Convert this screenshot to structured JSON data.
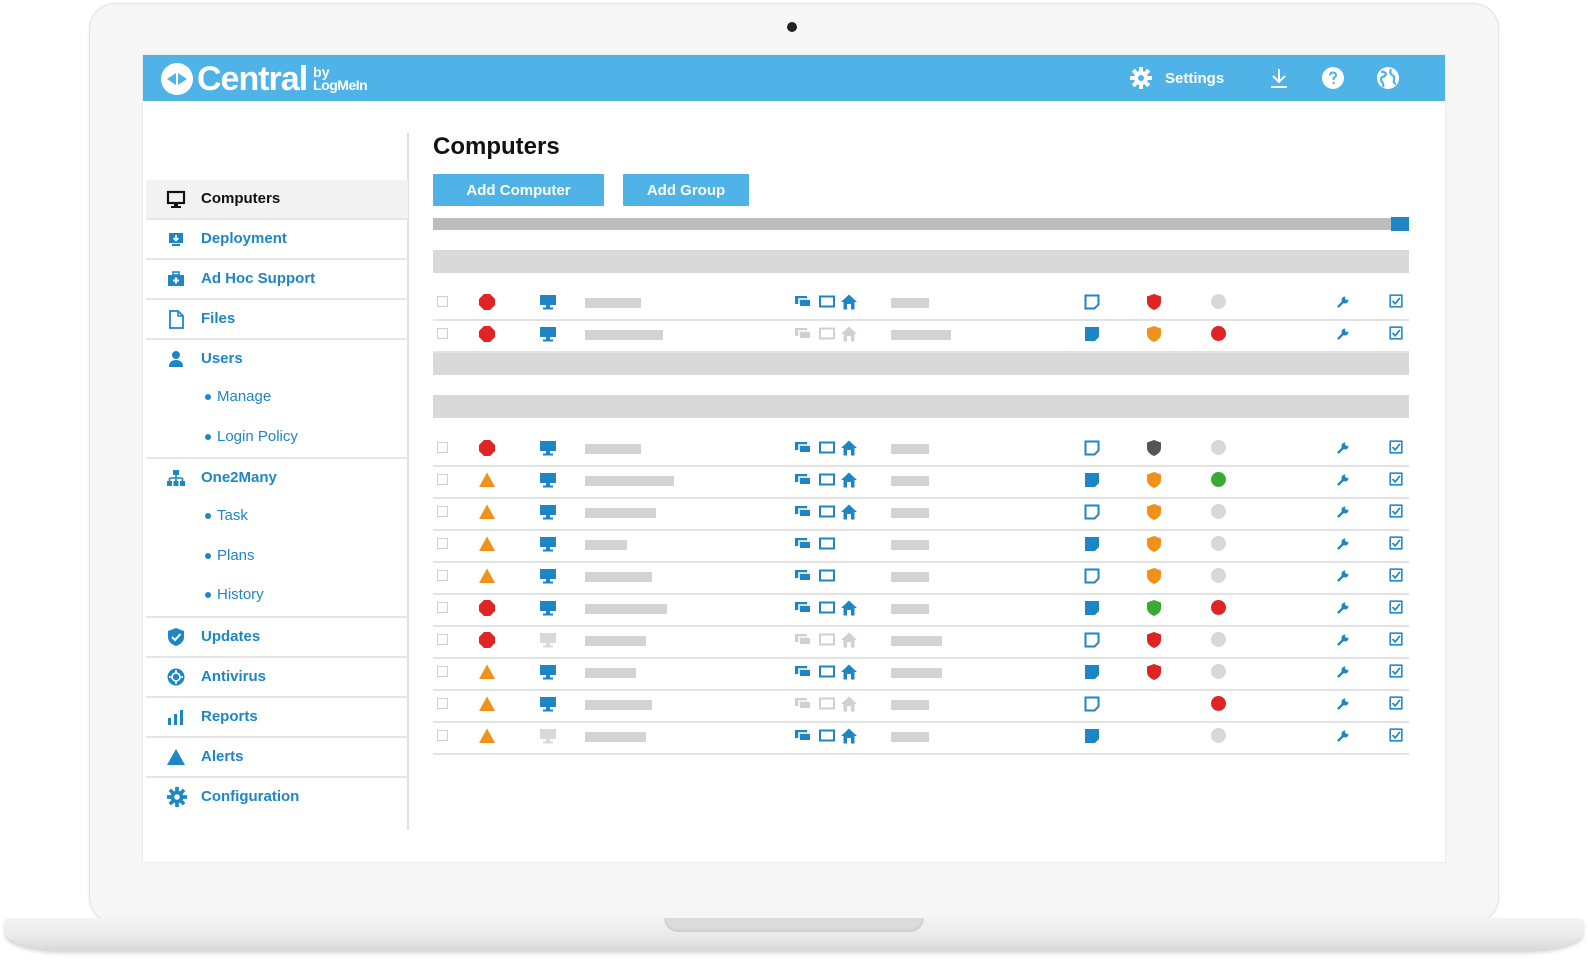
{
  "app": {
    "logo_text": "Central",
    "logo_by": "by",
    "logo_brand": "LogMeIn",
    "accent_color": "#4fb3e8",
    "link_color": "#1f86c6"
  },
  "topbar": {
    "settings_label": "Settings",
    "icons": [
      "gear-icon",
      "download-icon",
      "help-icon",
      "globe-icon"
    ]
  },
  "sidebar": {
    "items": [
      {
        "label": "Computers",
        "icon": "monitor-icon",
        "active": true
      },
      {
        "label": "Deployment",
        "icon": "deployment-icon"
      },
      {
        "label": "Ad Hoc Support",
        "icon": "first-aid-kit-icon"
      },
      {
        "label": "Files",
        "icon": "file-icon"
      },
      {
        "label": "Users",
        "icon": "user-icon",
        "children": [
          "Manage",
          "Login Policy"
        ]
      },
      {
        "label": "One2Many",
        "icon": "hierarchy-icon",
        "children": [
          "Task",
          "Plans",
          "History"
        ]
      },
      {
        "label": "Updates",
        "icon": "shield-check-icon"
      },
      {
        "label": "Antivirus",
        "icon": "antivirus-icon"
      },
      {
        "label": "Reports",
        "icon": "bar-chart-icon"
      },
      {
        "label": "Alerts",
        "icon": "warning-triangle-icon"
      },
      {
        "label": "Configuration",
        "icon": "gear-icon"
      }
    ]
  },
  "main": {
    "title": "Computers",
    "add_computer_label": "Add Computer",
    "add_group_label": "Add Group",
    "status_colors": {
      "red": "#e02424",
      "orange": "#f0921a",
      "green": "#3aaa35",
      "grey": "#d8d8d8",
      "dark": "#555555",
      "blue": "#1f86c6"
    },
    "groups": [
      {
        "rows": [
          {
            "status": "stop",
            "online": true,
            "remote_tools": "all",
            "note": "outline",
            "shield": "red",
            "dot": "grey"
          },
          {
            "status": "stop",
            "online": true,
            "remote_tools": "disabled",
            "note": "filled",
            "shield": "orange",
            "dot": "red"
          }
        ]
      },
      {
        "rows": [
          {
            "status": "stop",
            "online": true,
            "remote_tools": "all",
            "note": "outline",
            "shield": "dark",
            "dot": "grey"
          },
          {
            "status": "warn",
            "online": true,
            "remote_tools": "all",
            "note": "filled",
            "shield": "orange",
            "dot": "green"
          },
          {
            "status": "warn",
            "online": true,
            "remote_tools": "all",
            "note": "outline",
            "shield": "orange",
            "dot": "grey"
          },
          {
            "status": "warn",
            "online": true,
            "remote_tools": "two",
            "note": "filled",
            "shield": "orange",
            "dot": "grey"
          },
          {
            "status": "warn",
            "online": true,
            "remote_tools": "two",
            "note": "outline",
            "shield": "orange",
            "dot": "grey"
          },
          {
            "status": "stop",
            "online": true,
            "remote_tools": "all",
            "note": "filled",
            "shield": "green",
            "dot": "red"
          },
          {
            "status": "stop",
            "online": false,
            "remote_tools": "disabled",
            "note": "outline",
            "shield": "red",
            "dot": "grey"
          },
          {
            "status": "warn",
            "online": true,
            "remote_tools": "all",
            "note": "filled",
            "shield": "red",
            "dot": "grey"
          },
          {
            "status": "warn",
            "online": true,
            "remote_tools": "disabled",
            "note": "outline",
            "shield": "none",
            "dot": "red"
          },
          {
            "status": "warn",
            "online": false,
            "remote_tools": "all",
            "note": "filled",
            "shield": "none",
            "dot": "grey"
          }
        ]
      }
    ]
  }
}
